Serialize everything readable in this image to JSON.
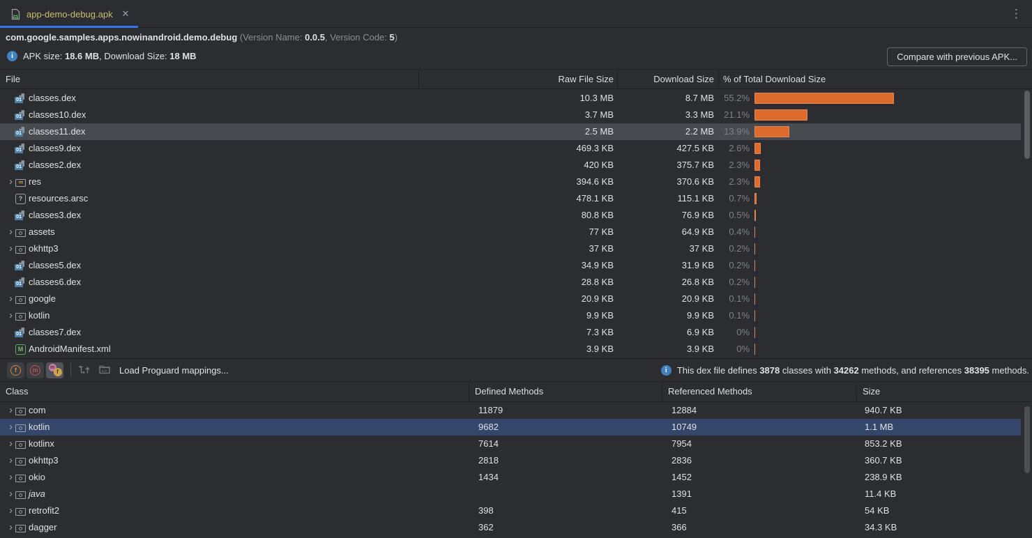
{
  "colors": {
    "background": "#2b2d30",
    "accent_orange": "#dc6b2d",
    "selection_blue": "#35466b",
    "selection_gray": "#474a4e",
    "tab_underline": "#3574f0",
    "tab_label": "#c9be70",
    "info_blue": "#4181c0"
  },
  "icons": {
    "chevron": "›",
    "close": "✕",
    "more": "⋮",
    "info": "i"
  },
  "tab": {
    "label": "app-demo-debug.apk"
  },
  "header": {
    "package": "com.google.samples.apps.nowinandroid.demo.debug",
    "version_prefix": " (Version Name: ",
    "version_name": "0.0.5",
    "version_mid": ", Version Code: ",
    "version_code": "5",
    "version_suffix": ")",
    "apk_label": "APK size: ",
    "apk_size": "18.6 MB",
    "download_label": ", Download Size: ",
    "download_size": "18 MB",
    "compare_button": "Compare with previous APK..."
  },
  "file_table": {
    "headers": {
      "file": "File",
      "raw": "Raw File Size",
      "download": "Download Size",
      "pct": "% of Total Download Size"
    },
    "rows": [
      {
        "icon": "dex",
        "name": "classes.dex",
        "expandable": false,
        "raw": "10.3 MB",
        "download": "8.7 MB",
        "pct": 55.2,
        "pct_label": "55.2%",
        "selected": false
      },
      {
        "icon": "dex",
        "name": "classes10.dex",
        "expandable": false,
        "raw": "3.7 MB",
        "download": "3.3 MB",
        "pct": 21.1,
        "pct_label": "21.1%",
        "selected": false
      },
      {
        "icon": "dex",
        "name": "classes11.dex",
        "expandable": false,
        "raw": "2.5 MB",
        "download": "2.2 MB",
        "pct": 13.9,
        "pct_label": "13.9%",
        "selected": true
      },
      {
        "icon": "dex",
        "name": "classes9.dex",
        "expandable": false,
        "raw": "469.3 KB",
        "download": "427.5 KB",
        "pct": 2.6,
        "pct_label": "2.6%",
        "selected": false
      },
      {
        "icon": "dex",
        "name": "classes2.dex",
        "expandable": false,
        "raw": "420 KB",
        "download": "375.7 KB",
        "pct": 2.3,
        "pct_label": "2.3%",
        "selected": false
      },
      {
        "icon": "resfolder",
        "name": "res",
        "expandable": true,
        "raw": "394.6 KB",
        "download": "370.6 KB",
        "pct": 2.3,
        "pct_label": "2.3%",
        "selected": false
      },
      {
        "icon": "arsc",
        "name": "resources.arsc",
        "expandable": false,
        "raw": "478.1 KB",
        "download": "115.1 KB",
        "pct": 0.7,
        "pct_label": "0.7%",
        "selected": false
      },
      {
        "icon": "dex",
        "name": "classes3.dex",
        "expandable": false,
        "raw": "80.8 KB",
        "download": "76.9 KB",
        "pct": 0.5,
        "pct_label": "0.5%",
        "selected": false
      },
      {
        "icon": "folder",
        "name": "assets",
        "expandable": true,
        "raw": "77 KB",
        "download": "64.9 KB",
        "pct": 0.4,
        "pct_label": "0.4%",
        "selected": false
      },
      {
        "icon": "folder",
        "name": "okhttp3",
        "expandable": true,
        "raw": "37 KB",
        "download": "37 KB",
        "pct": 0.2,
        "pct_label": "0.2%",
        "selected": false
      },
      {
        "icon": "dex",
        "name": "classes5.dex",
        "expandable": false,
        "raw": "34.9 KB",
        "download": "31.9 KB",
        "pct": 0.2,
        "pct_label": "0.2%",
        "selected": false
      },
      {
        "icon": "dex",
        "name": "classes6.dex",
        "expandable": false,
        "raw": "28.8 KB",
        "download": "26.8 KB",
        "pct": 0.2,
        "pct_label": "0.2%",
        "selected": false
      },
      {
        "icon": "folder",
        "name": "google",
        "expandable": true,
        "raw": "20.9 KB",
        "download": "20.9 KB",
        "pct": 0.1,
        "pct_label": "0.1%",
        "selected": false
      },
      {
        "icon": "folder",
        "name": "kotlin",
        "expandable": true,
        "raw": "9.9 KB",
        "download": "9.9 KB",
        "pct": 0.1,
        "pct_label": "0.1%",
        "selected": false
      },
      {
        "icon": "dex",
        "name": "classes7.dex",
        "expandable": false,
        "raw": "7.3 KB",
        "download": "6.9 KB",
        "pct": 0,
        "pct_label": "0%",
        "selected": false
      },
      {
        "icon": "manifest",
        "name": "AndroidManifest.xml",
        "expandable": false,
        "raw": "3.9 KB",
        "download": "3.9 KB",
        "pct": 0,
        "pct_label": "0%",
        "selected": false
      }
    ]
  },
  "toolbar": {
    "btn_f": {
      "letter": "f"
    },
    "btn_m": {
      "letter": "m"
    },
    "btn_mf": {
      "m": "m",
      "f": "f"
    },
    "load_label": "Load Proguard mappings...",
    "info": {
      "t1": "This dex file defines ",
      "v1": "3878",
      "t2": " classes with ",
      "v2": "34262",
      "t3": " methods, and references ",
      "v3": "38395",
      "t4": " methods."
    }
  },
  "class_table": {
    "headers": {
      "class": "Class",
      "defined": "Defined Methods",
      "referenced": "Referenced Methods",
      "size": "Size"
    },
    "rows": [
      {
        "name": "com",
        "defined": "11879",
        "referenced": "12884",
        "size": "940.7 KB",
        "selected": false,
        "italic": false
      },
      {
        "name": "kotlin",
        "defined": "9682",
        "referenced": "10749",
        "size": "1.1 MB",
        "selected": true,
        "italic": false
      },
      {
        "name": "kotlinx",
        "defined": "7614",
        "referenced": "7954",
        "size": "853.2 KB",
        "selected": false,
        "italic": false
      },
      {
        "name": "okhttp3",
        "defined": "2818",
        "referenced": "2836",
        "size": "360.7 KB",
        "selected": false,
        "italic": false
      },
      {
        "name": "okio",
        "defined": "1434",
        "referenced": "1452",
        "size": "238.9 KB",
        "selected": false,
        "italic": false
      },
      {
        "name": "java",
        "defined": "",
        "referenced": "1391",
        "size": "11.4 KB",
        "selected": false,
        "italic": true
      },
      {
        "name": "retrofit2",
        "defined": "398",
        "referenced": "415",
        "size": "54 KB",
        "selected": false,
        "italic": false
      },
      {
        "name": "dagger",
        "defined": "362",
        "referenced": "366",
        "size": "34.3 KB",
        "selected": false,
        "italic": false
      }
    ]
  }
}
